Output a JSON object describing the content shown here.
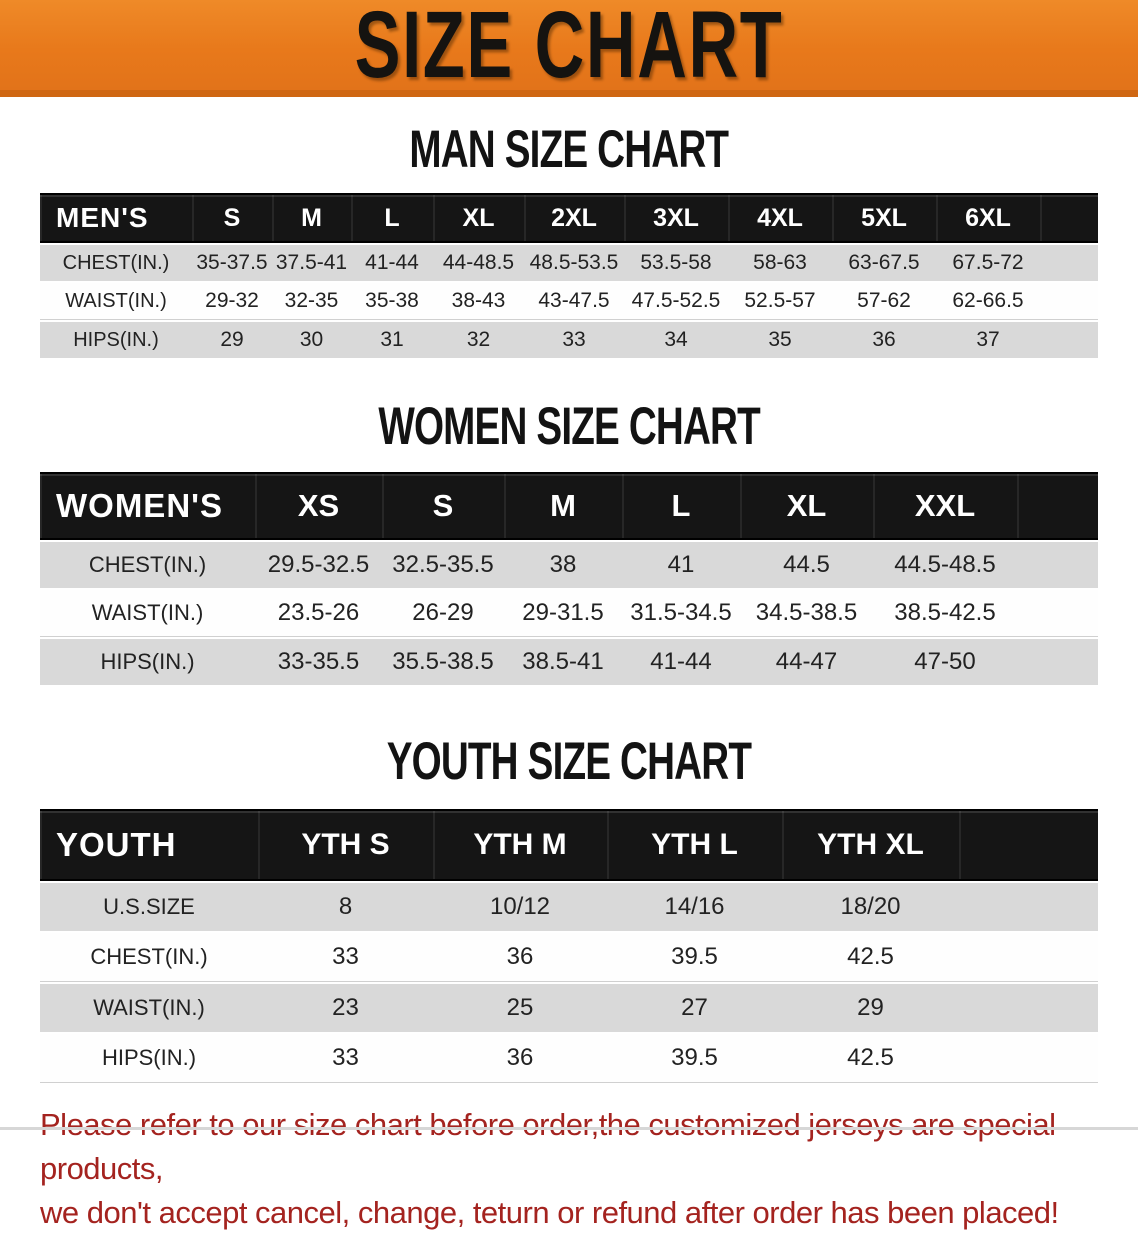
{
  "banner": {
    "title": "SIZE CHART"
  },
  "sections": [
    {
      "heading": "MAN SIZE CHART",
      "group_label": "MEN'S",
      "columns": [
        "S",
        "M",
        "L",
        "XL",
        "2XL",
        "3XL",
        "4XL",
        "5XL",
        "6XL"
      ],
      "rows": [
        {
          "label": "CHEST(IN.)",
          "values": [
            "35-37.5",
            "37.5-41",
            "41-44",
            "44-48.5",
            "48.5-53.5",
            "53.5-58",
            "58-63",
            "63-67.5",
            "67.5-72"
          ]
        },
        {
          "label": "WAIST(IN.)",
          "values": [
            "29-32",
            "32-35",
            "35-38",
            "38-43",
            "43-47.5",
            "47.5-52.5",
            "52.5-57",
            "57-62",
            "62-66.5"
          ]
        },
        {
          "label": "HIPS(IN.)",
          "values": [
            "29",
            "30",
            "31",
            "32",
            "33",
            "34",
            "35",
            "36",
            "37"
          ]
        }
      ]
    },
    {
      "heading": "WOMEN SIZE CHART",
      "group_label": "WOMEN'S",
      "columns": [
        "XS",
        "S",
        "M",
        "L",
        "XL",
        "XXL"
      ],
      "rows": [
        {
          "label": "CHEST(IN.)",
          "values": [
            "29.5-32.5",
            "32.5-35.5",
            "38",
            "41",
            "44.5",
            "44.5-48.5"
          ]
        },
        {
          "label": "WAIST(IN.)",
          "values": [
            "23.5-26",
            "26-29",
            "29-31.5",
            "31.5-34.5",
            "34.5-38.5",
            "38.5-42.5"
          ]
        },
        {
          "label": "HIPS(IN.)",
          "values": [
            "33-35.5",
            "35.5-38.5",
            "38.5-41",
            "41-44",
            "44-47",
            "47-50"
          ]
        }
      ]
    },
    {
      "heading": "YOUTH SIZE CHART",
      "group_label": "YOUTH",
      "columns": [
        "YTH S",
        "YTH M",
        "YTH L",
        "YTH XL"
      ],
      "rows": [
        {
          "label": "U.S.SIZE",
          "values": [
            "8",
            "10/12",
            "14/16",
            "18/20"
          ]
        },
        {
          "label": "CHEST(IN.)",
          "values": [
            "33",
            "36",
            "39.5",
            "42.5"
          ]
        },
        {
          "label": "WAIST(IN.)",
          "values": [
            "23",
            "25",
            "27",
            "29"
          ]
        },
        {
          "label": "HIPS(IN.)",
          "values": [
            "33",
            "36",
            "39.5",
            "42.5"
          ]
        }
      ]
    }
  ],
  "disclaimer": {
    "line1": "Please refer to our size chart before order,the customized jerseys are special products,",
    "line2": "we don't accept cancel, change, teturn or refund after order has been placed!"
  },
  "colors": {
    "banner_orange": "#e8791b",
    "banner_orange_dark": "#cf6713",
    "header_black": "#151515",
    "row_gray": "#d9d9d9",
    "text_dark": "#222222",
    "disclaimer_red": "#a4231f"
  }
}
